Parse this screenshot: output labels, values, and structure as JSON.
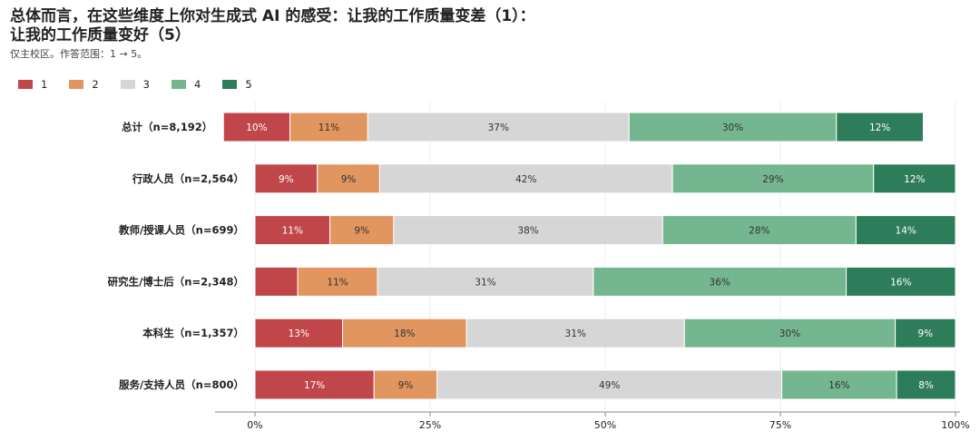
{
  "title_line1": "总体而言，在这些维度上你对生成式 AI 的感受：让我的工作质量变差（1）：",
  "title_line2": "让我的工作质量变好（5）",
  "subtitle": "仅主校区。作答范围：1 → 5。",
  "colors": {
    "1": "#c0464a",
    "2": "#e1965f",
    "3": "#d6d6d6",
    "4": "#74b68f",
    "5": "#2e7d5a"
  },
  "chart_data": {
    "type": "bar",
    "orientation": "horizontal",
    "stacked": true,
    "categories": [
      "总计（n=8,192）",
      "行政人员（n=2,564）",
      "教师/授课人员（n=699）",
      "研究生/博士后（n=2,348）",
      "本科生（n=1,357）",
      "服务/支持人员（n=800）"
    ],
    "offsets": [
      -0.045,
      0,
      0,
      0,
      0,
      0
    ],
    "series": [
      {
        "name": "1",
        "values": [
          0.095,
          0.089,
          0.107,
          0.061,
          0.125,
          0.17
        ],
        "labels": [
          "10%",
          "9%",
          "11%",
          "",
          "13%",
          "17%"
        ]
      },
      {
        "name": "2",
        "values": [
          0.111,
          0.089,
          0.091,
          0.114,
          0.177,
          0.09
        ],
        "labels": [
          "11%",
          "9%",
          "9%",
          "11%",
          "18%",
          "9%"
        ]
      },
      {
        "name": "3",
        "values": [
          0.373,
          0.418,
          0.384,
          0.308,
          0.311,
          0.492
        ],
        "labels": [
          "37%",
          "42%",
          "38%",
          "31%",
          "31%",
          "49%"
        ]
      },
      {
        "name": "4",
        "values": [
          0.296,
          0.287,
          0.276,
          0.361,
          0.301,
          0.164
        ],
        "labels": [
          "30%",
          "29%",
          "28%",
          "36%",
          "30%",
          "16%"
        ]
      },
      {
        "name": "5",
        "values": [
          0.124,
          0.117,
          0.142,
          0.156,
          0.086,
          0.084
        ],
        "labels": [
          "12%",
          "12%",
          "14%",
          "16%",
          "9%",
          "8%"
        ]
      }
    ],
    "xlim": [
      -0.06,
      1.0
    ],
    "x_ticks": [
      0,
      0.25,
      0.5,
      0.75,
      1.0
    ],
    "x_tick_labels": [
      "0%",
      "25%",
      "50%",
      "75%",
      "100%"
    ],
    "grid": true,
    "legend": "top-left"
  }
}
